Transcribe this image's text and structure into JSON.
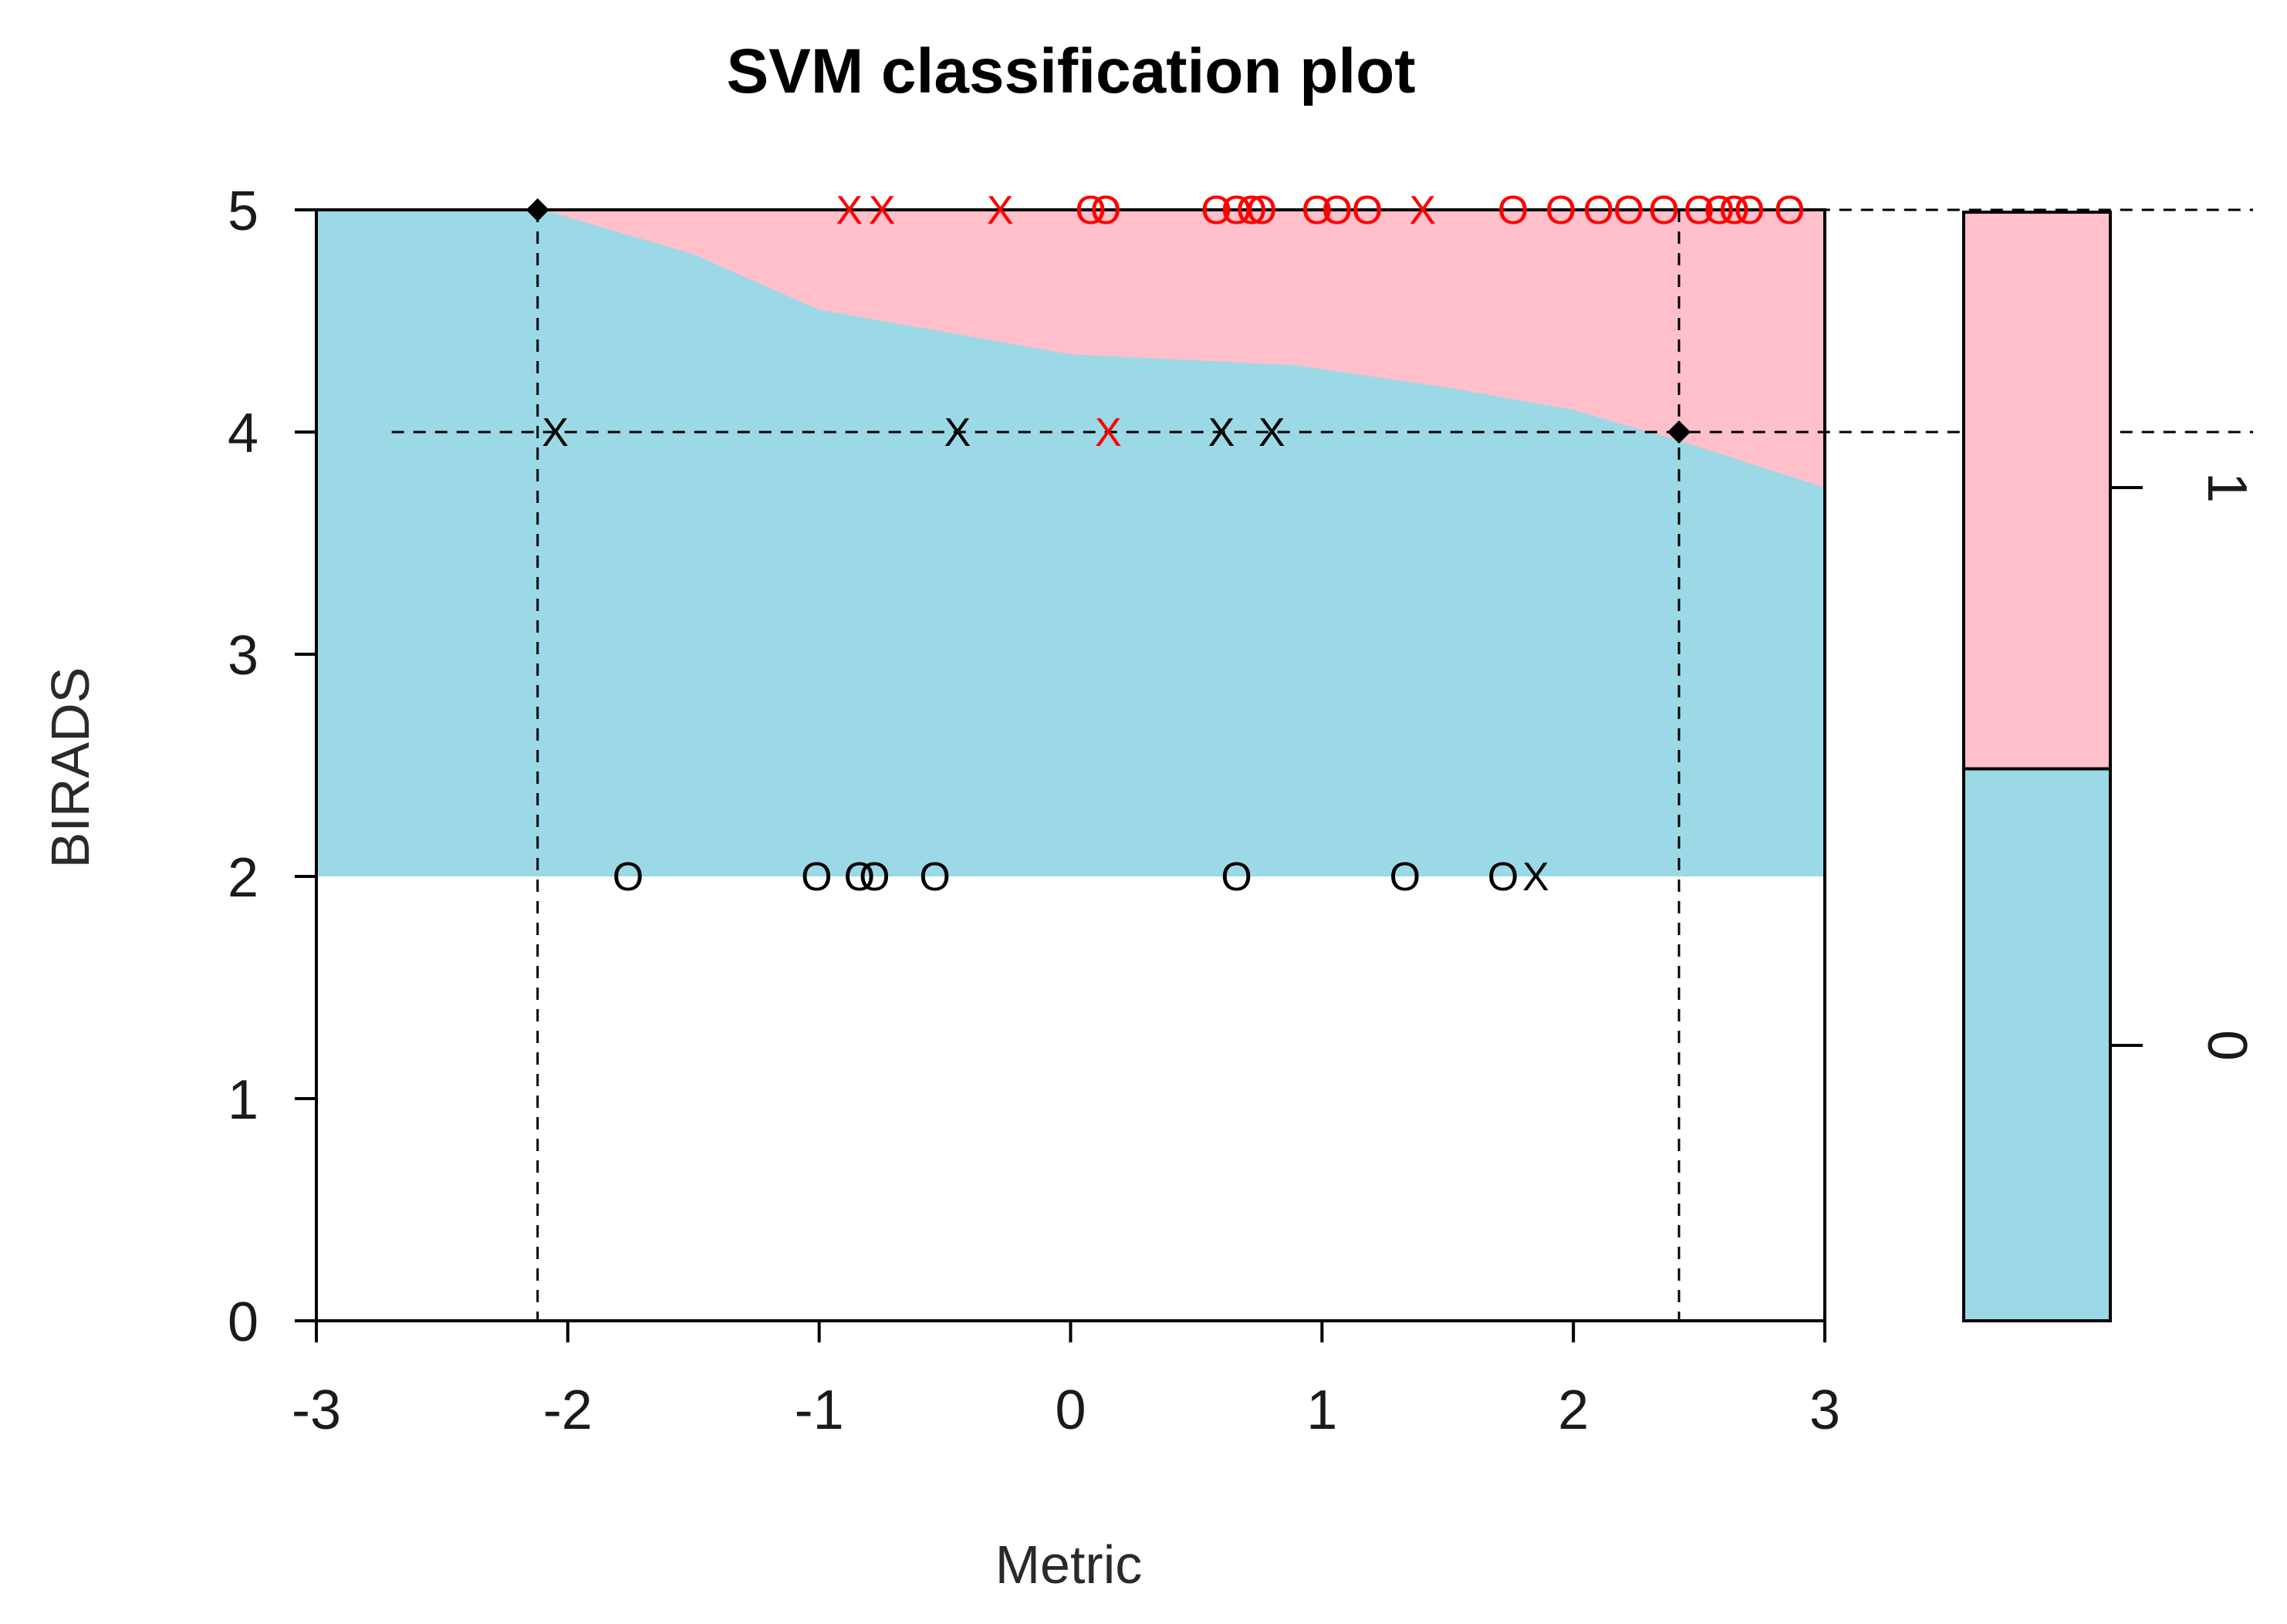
{
  "chart_data": {
    "type": "scatter",
    "title": "SVM classification plot",
    "xlabel": "Metric",
    "ylabel": "BIRADS",
    "xlim": [
      -3,
      3
    ],
    "ylim": [
      0,
      5
    ],
    "x_ticks": [
      "-3",
      "-2",
      "-1",
      "0",
      "1",
      "2",
      "3"
    ],
    "y_ticks": [
      "0",
      "1",
      "2",
      "3",
      "4",
      "5"
    ],
    "colors": {
      "class_0": "#9bd9e6",
      "class_1": "#ffc0cb",
      "points_class_0": "#000000",
      "points_class_1": "#ff0000"
    },
    "decision_regions": {
      "class_0": {
        "y_range": [
          2,
          5
        ]
      },
      "class_1_boundary": [
        {
          "x": -2.1,
          "y": 5.0
        },
        {
          "x": -1.5,
          "y": 4.8
        },
        {
          "x": -1.0,
          "y": 4.55
        },
        {
          "x": -0.5,
          "y": 4.45
        },
        {
          "x": 0.0,
          "y": 4.35
        },
        {
          "x": 0.9,
          "y": 4.3
        },
        {
          "x": 1.5,
          "y": 4.2
        },
        {
          "x": 2.0,
          "y": 4.1
        },
        {
          "x": 2.45,
          "y": 3.95
        },
        {
          "x": 3.0,
          "y": 3.75
        }
      ]
    },
    "reference_lines": {
      "horizontal": [
        {
          "y": 5,
          "x_from": -2.7
        },
        {
          "y": 4,
          "x_from": -2.7
        }
      ],
      "vertical": [
        -2.12,
        2.42
      ]
    },
    "highlight_points": [
      {
        "x": -2.12,
        "y": 5
      },
      {
        "x": 2.42,
        "y": 4
      }
    ],
    "points": [
      {
        "x": -0.88,
        "y": 5,
        "symbol": "X",
        "class": "1"
      },
      {
        "x": -0.75,
        "y": 5,
        "symbol": "X",
        "class": "1"
      },
      {
        "x": -0.28,
        "y": 5,
        "symbol": "X",
        "class": "1"
      },
      {
        "x": 0.08,
        "y": 5,
        "symbol": "O",
        "class": "1"
      },
      {
        "x": 0.14,
        "y": 5,
        "symbol": "O",
        "class": "1"
      },
      {
        "x": 0.58,
        "y": 5,
        "symbol": "O",
        "class": "1"
      },
      {
        "x": 0.66,
        "y": 5,
        "symbol": "O",
        "class": "1"
      },
      {
        "x": 0.72,
        "y": 5,
        "symbol": "O",
        "class": "1"
      },
      {
        "x": 0.76,
        "y": 5,
        "symbol": "O",
        "class": "1"
      },
      {
        "x": 0.98,
        "y": 5,
        "symbol": "O",
        "class": "1"
      },
      {
        "x": 1.06,
        "y": 5,
        "symbol": "O",
        "class": "1"
      },
      {
        "x": 1.18,
        "y": 5,
        "symbol": "O",
        "class": "1"
      },
      {
        "x": 1.4,
        "y": 5,
        "symbol": "X",
        "class": "1"
      },
      {
        "x": 1.76,
        "y": 5,
        "symbol": "O",
        "class": "1"
      },
      {
        "x": 1.95,
        "y": 5,
        "symbol": "O",
        "class": "1"
      },
      {
        "x": 2.1,
        "y": 5,
        "symbol": "O",
        "class": "1"
      },
      {
        "x": 2.22,
        "y": 5,
        "symbol": "O",
        "class": "1"
      },
      {
        "x": 2.36,
        "y": 5,
        "symbol": "O",
        "class": "1"
      },
      {
        "x": 2.5,
        "y": 5,
        "symbol": "O",
        "class": "1"
      },
      {
        "x": 2.58,
        "y": 5,
        "symbol": "O",
        "class": "1"
      },
      {
        "x": 2.64,
        "y": 5,
        "symbol": "O",
        "class": "1"
      },
      {
        "x": 2.7,
        "y": 5,
        "symbol": "O",
        "class": "1"
      },
      {
        "x": 2.86,
        "y": 5,
        "symbol": "O",
        "class": "1"
      },
      {
        "x": -2.05,
        "y": 4,
        "symbol": "X",
        "class": "0"
      },
      {
        "x": -0.45,
        "y": 4,
        "symbol": "X",
        "class": "0"
      },
      {
        "x": 0.15,
        "y": 4,
        "symbol": "X",
        "class": "1"
      },
      {
        "x": 0.6,
        "y": 4,
        "symbol": "X",
        "class": "0"
      },
      {
        "x": 0.8,
        "y": 4,
        "symbol": "X",
        "class": "0"
      },
      {
        "x": -1.76,
        "y": 2,
        "symbol": "O",
        "class": "0"
      },
      {
        "x": -1.01,
        "y": 2,
        "symbol": "O",
        "class": "0"
      },
      {
        "x": -0.84,
        "y": 2,
        "symbol": "O",
        "class": "0"
      },
      {
        "x": -0.78,
        "y": 2,
        "symbol": "O",
        "class": "0"
      },
      {
        "x": -0.54,
        "y": 2,
        "symbol": "O",
        "class": "0"
      },
      {
        "x": 0.66,
        "y": 2,
        "symbol": "O",
        "class": "0"
      },
      {
        "x": 1.33,
        "y": 2,
        "symbol": "O",
        "class": "0"
      },
      {
        "x": 1.72,
        "y": 2,
        "symbol": "O",
        "class": "0"
      },
      {
        "x": 1.85,
        "y": 2,
        "symbol": "X",
        "class": "0"
      }
    ],
    "legend": {
      "position": "right",
      "labels": [
        "0",
        "1"
      ],
      "split": 0.5
    }
  }
}
